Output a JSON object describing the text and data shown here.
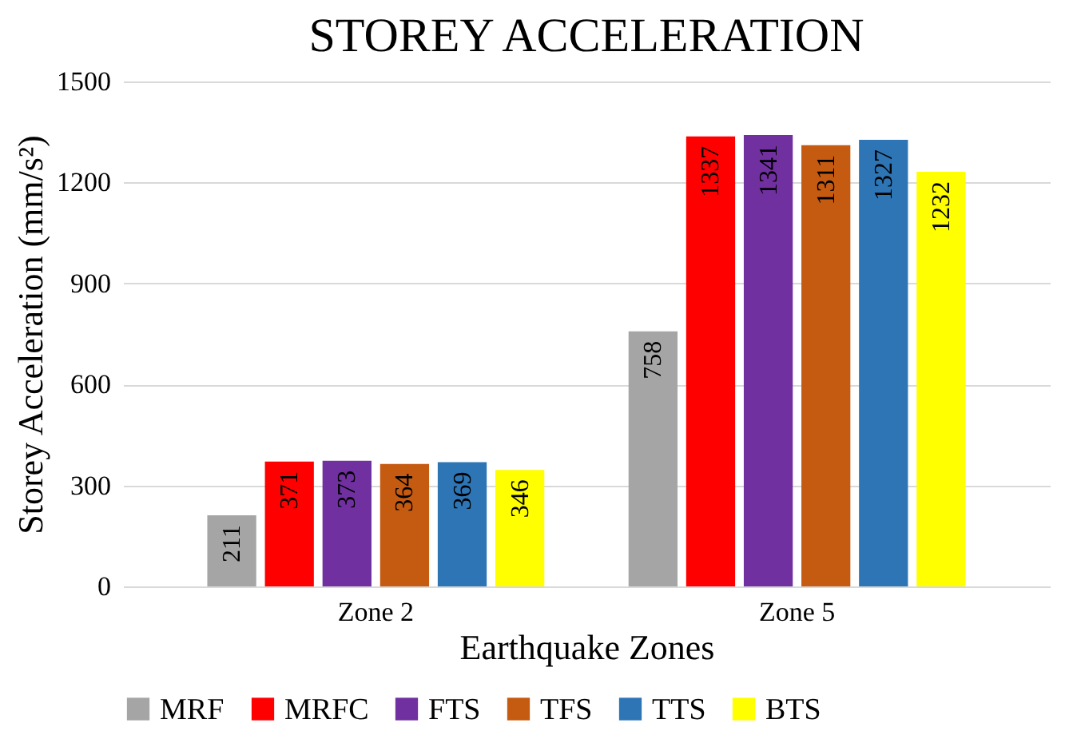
{
  "chart_data": {
    "type": "bar",
    "title": "STOREY ACCELERATION",
    "xlabel": "Earthquake Zones",
    "ylabel": "Storey Acceleration (mm/s²)",
    "categories": [
      "Zone 2",
      "Zone 5"
    ],
    "series": [
      {
        "name": "MRF",
        "color": "#a5a5a5",
        "values": [
          211,
          758
        ]
      },
      {
        "name": "MRFC",
        "color": "#ff0000",
        "values": [
          371,
          1337
        ]
      },
      {
        "name": "FTS",
        "color": "#7030a0",
        "values": [
          373,
          1341
        ]
      },
      {
        "name": "TFS",
        "color": "#c55a11",
        "values": [
          364,
          1311
        ]
      },
      {
        "name": "TTS",
        "color": "#2e75b6",
        "values": [
          369,
          1327
        ]
      },
      {
        "name": "BTS",
        "color": "#ffff00",
        "values": [
          346,
          1232
        ]
      }
    ],
    "ylim": [
      0,
      1500
    ],
    "yticks": [
      0,
      300,
      600,
      900,
      1200,
      1500
    ],
    "grid": "y",
    "legend": "bottom",
    "data_labels": true
  }
}
